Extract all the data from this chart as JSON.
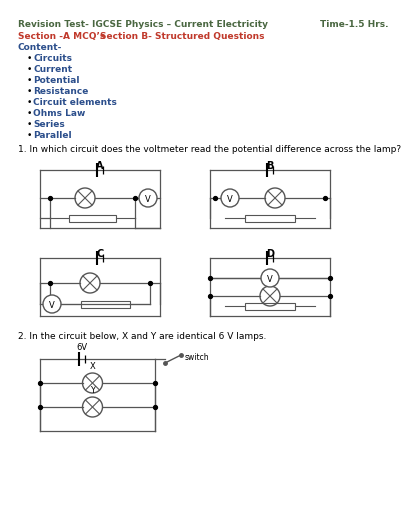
{
  "title_left": "Revision Test- IGCSE Physics – Current Electricity",
  "title_right": "Time-1.5 Hrs.",
  "title_color": "#4a6741",
  "section_text1": "Section -A MCQ’s",
  "section_text2": "Section B- Structured Questions",
  "section_color": "#c0392b",
  "content_label": "Content-",
  "content_color": "#2c4f8c",
  "bullets": [
    "Circuits",
    "Current",
    "Potential",
    "Resistance",
    "Circuit elements",
    "Ohms Law",
    "Series",
    "Parallel"
  ],
  "q1_text": "1. In which circuit does the voltmeter read the potential difference across the lamp?",
  "q2_text": "2. In the circuit below, X and Y are identical 6 V lamps.",
  "text_color": "#000000",
  "bg_color": "#ffffff"
}
